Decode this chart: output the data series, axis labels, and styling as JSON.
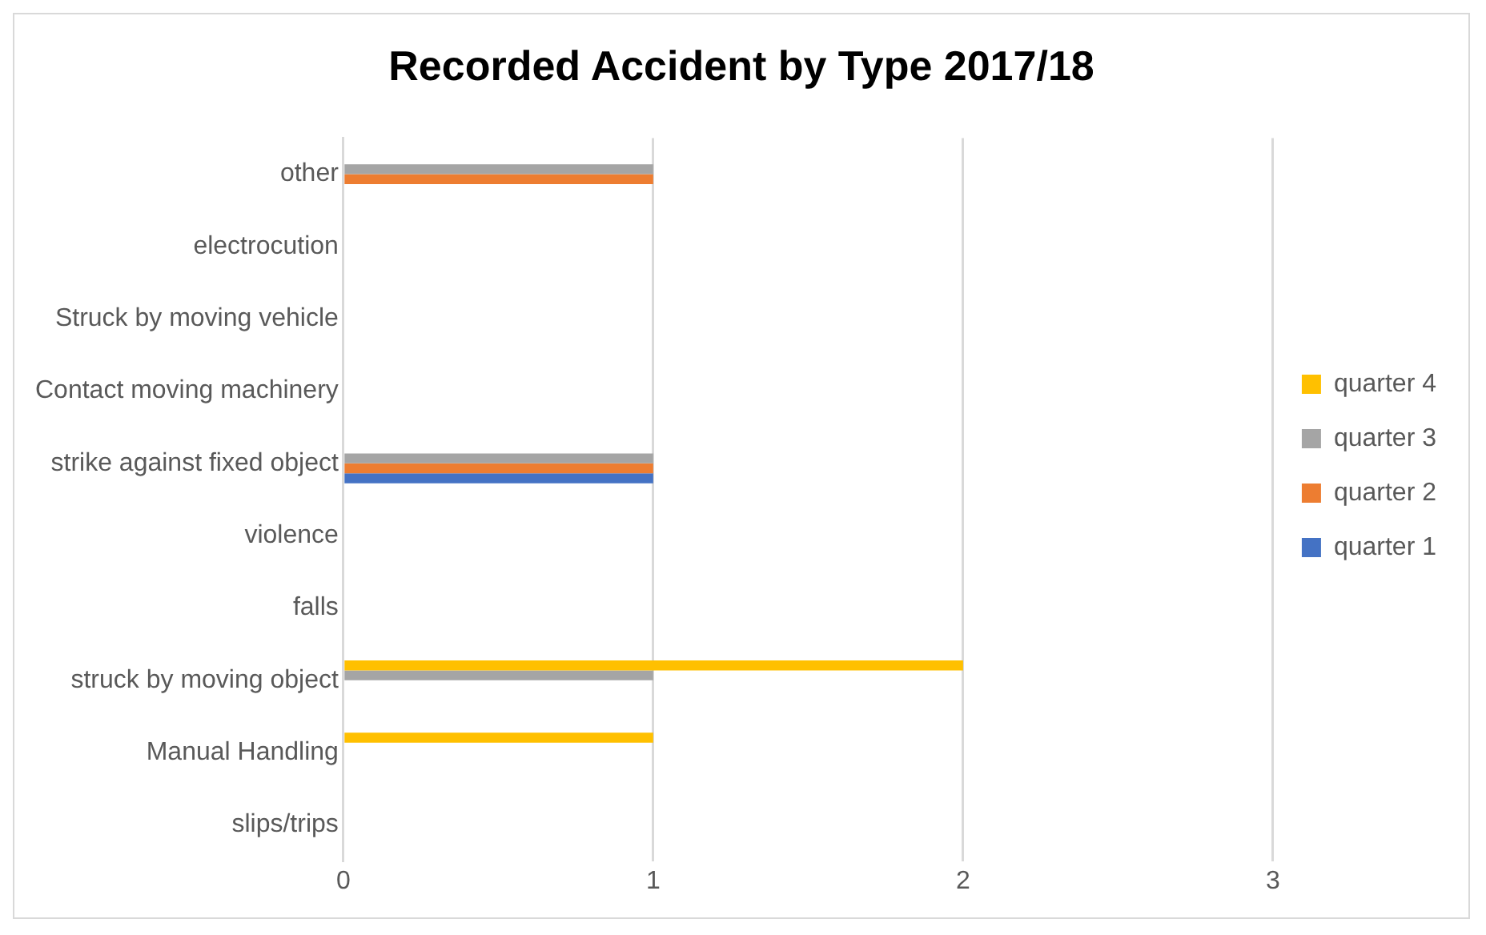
{
  "chart_data": {
    "type": "bar",
    "orientation": "horizontal",
    "title": "Recorded Accident by Type 2017/18",
    "categories": [
      "other",
      "electrocution",
      "Struck by moving vehicle",
      "Contact moving machinery",
      "strike against fixed object",
      "violence",
      "falls",
      "struck by moving object",
      "Manual Handling",
      "slips/trips"
    ],
    "series": [
      {
        "name": "quarter 4",
        "color": "#ffc000",
        "values": [
          0,
          0,
          0,
          0,
          0,
          0,
          0,
          2,
          1,
          0
        ]
      },
      {
        "name": "quarter 3",
        "color": "#a5a5a5",
        "values": [
          1,
          0,
          0,
          0,
          1,
          0,
          0,
          1,
          0,
          0
        ]
      },
      {
        "name": "quarter 2",
        "color": "#ed7d31",
        "values": [
          1,
          0,
          0,
          0,
          1,
          0,
          0,
          0,
          0,
          0
        ]
      },
      {
        "name": "quarter 1",
        "color": "#4472c4",
        "values": [
          0,
          0,
          0,
          0,
          1,
          0,
          0,
          0,
          0,
          0
        ]
      }
    ],
    "xlim": [
      0,
      3
    ],
    "xticks": [
      0,
      1,
      2,
      3
    ],
    "grid": "x",
    "legend": "right"
  }
}
